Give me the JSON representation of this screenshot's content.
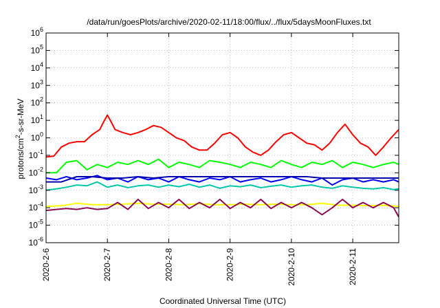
{
  "chart_data": {
    "type": "line",
    "title": "/data/run/goesPlots/archive/2020-02-11/18:00/flux/../flux/5daysMoonFluxes.txt",
    "xlabel": "Coordinated Universal Time (UTC)",
    "ylabel": {
      "prefix": "protons/cm",
      "sup": "2",
      "suffix": "-s-sr-MeV"
    },
    "y_scale": "log",
    "ylim": [
      1e-06,
      1000000.0
    ],
    "y_ticks": [
      {
        "value": 1e-06,
        "base": "10",
        "exp": "-6"
      },
      {
        "value": 1e-05,
        "base": "10",
        "exp": "-5"
      },
      {
        "value": 0.0001,
        "base": "10",
        "exp": "-4"
      },
      {
        "value": 0.001,
        "base": "10",
        "exp": "-3"
      },
      {
        "value": 0.01,
        "base": "10",
        "exp": "-2"
      },
      {
        "value": 0.1,
        "base": "10",
        "exp": "-1"
      },
      {
        "value": 1,
        "base": "10",
        "exp": "0"
      },
      {
        "value": 10,
        "base": "10",
        "exp": "1"
      },
      {
        "value": 100,
        "base": "10",
        "exp": "2"
      },
      {
        "value": 1000,
        "base": "10",
        "exp": "3"
      },
      {
        "value": 10000,
        "base": "10",
        "exp": "4"
      },
      {
        "value": 100000,
        "base": "10",
        "exp": "5"
      },
      {
        "value": 1000000,
        "base": "10",
        "exp": "6"
      }
    ],
    "xlim": [
      "2020-02-06",
      "2020-02-11 18:00"
    ],
    "x_ticks": [
      {
        "value": "2020-02-06",
        "label": "2020-2-6"
      },
      {
        "value": "2020-02-07",
        "label": "2020-2-7"
      },
      {
        "value": "2020-02-08",
        "label": "2020-2-8"
      },
      {
        "value": "2020-02-09",
        "label": "2020-2-9"
      },
      {
        "value": "2020-02-10",
        "label": "2020-2-10"
      },
      {
        "value": "2020-02-11",
        "label": "2020-2-11"
      }
    ],
    "grid": true,
    "grid_style": "dotted",
    "series": [
      {
        "color": "#ff0000",
        "x": [
          "2020-02-06 00:00",
          "2020-02-06 03:00",
          "2020-02-06 06:00",
          "2020-02-06 09:00",
          "2020-02-06 12:00",
          "2020-02-06 15:00",
          "2020-02-06 18:00",
          "2020-02-06 21:00",
          "2020-02-06 22:30",
          "2020-02-07 00:00",
          "2020-02-07 01:30",
          "2020-02-07 03:00",
          "2020-02-07 06:00",
          "2020-02-07 09:00",
          "2020-02-07 12:00",
          "2020-02-07 15:00",
          "2020-02-07 18:00",
          "2020-02-07 21:00",
          "2020-02-08 00:00",
          "2020-02-08 03:00",
          "2020-02-08 06:00",
          "2020-02-08 09:00",
          "2020-02-08 12:00",
          "2020-02-08 15:00",
          "2020-02-08 18:00",
          "2020-02-08 21:00",
          "2020-02-09 00:00",
          "2020-02-09 03:00",
          "2020-02-09 06:00",
          "2020-02-09 09:00",
          "2020-02-09 12:00",
          "2020-02-09 15:00",
          "2020-02-09 18:00",
          "2020-02-09 21:00",
          "2020-02-10 00:00",
          "2020-02-10 03:00",
          "2020-02-10 06:00",
          "2020-02-10 09:00",
          "2020-02-10 12:00",
          "2020-02-10 15:00",
          "2020-02-10 18:00",
          "2020-02-10 21:00",
          "2020-02-11 00:00",
          "2020-02-11 03:00",
          "2020-02-11 06:00",
          "2020-02-11 09:00",
          "2020-02-11 12:00",
          "2020-02-11 15:00",
          "2020-02-11 18:00"
        ],
        "values": [
          0.08,
          0.09,
          0.3,
          0.5,
          0.6,
          0.6,
          1.5,
          3,
          8,
          20,
          8,
          3,
          2,
          1.5,
          2,
          3,
          5,
          4,
          2,
          1,
          0.7,
          0.3,
          0.2,
          0.2,
          0.5,
          1.5,
          2,
          1,
          0.3,
          0.15,
          0.1,
          0.2,
          0.6,
          1.5,
          2,
          1,
          0.5,
          0.4,
          0.2,
          0.5,
          2,
          6,
          1.5,
          0.5,
          0.3,
          0.1,
          0.3,
          1,
          3
        ]
      },
      {
        "color": "#00ff00",
        "x": [
          "2020-02-06 00:00",
          "2020-02-06 04:00",
          "2020-02-06 08:00",
          "2020-02-06 12:00",
          "2020-02-06 16:00",
          "2020-02-06 20:00",
          "2020-02-07 00:00",
          "2020-02-07 04:00",
          "2020-02-07 08:00",
          "2020-02-07 12:00",
          "2020-02-07 16:00",
          "2020-02-07 20:00",
          "2020-02-08 00:00",
          "2020-02-08 04:00",
          "2020-02-08 08:00",
          "2020-02-08 12:00",
          "2020-02-08 16:00",
          "2020-02-08 20:00",
          "2020-02-09 00:00",
          "2020-02-09 04:00",
          "2020-02-09 08:00",
          "2020-02-09 12:00",
          "2020-02-09 16:00",
          "2020-02-09 20:00",
          "2020-02-10 00:00",
          "2020-02-10 04:00",
          "2020-02-10 08:00",
          "2020-02-10 12:00",
          "2020-02-10 16:00",
          "2020-02-10 20:00",
          "2020-02-11 00:00",
          "2020-02-11 04:00",
          "2020-02-11 08:00",
          "2020-02-11 12:00",
          "2020-02-11 16:00",
          "2020-02-11 18:00"
        ],
        "values": [
          0.01,
          0.01,
          0.04,
          0.05,
          0.015,
          0.03,
          0.02,
          0.04,
          0.03,
          0.05,
          0.03,
          0.06,
          0.02,
          0.04,
          0.03,
          0.02,
          0.05,
          0.04,
          0.03,
          0.02,
          0.04,
          0.03,
          0.02,
          0.05,
          0.03,
          0.02,
          0.04,
          0.03,
          0.05,
          0.02,
          0.04,
          0.03,
          0.02,
          0.03,
          0.04,
          0.03
        ]
      },
      {
        "color": "#00c8a8",
        "x": [
          "2020-02-06 00:00",
          "2020-02-06 04:00",
          "2020-02-06 08:00",
          "2020-02-06 12:00",
          "2020-02-06 16:00",
          "2020-02-06 20:00",
          "2020-02-07 00:00",
          "2020-02-07 04:00",
          "2020-02-07 08:00",
          "2020-02-07 12:00",
          "2020-02-07 16:00",
          "2020-02-07 20:00",
          "2020-02-08 00:00",
          "2020-02-08 04:00",
          "2020-02-08 08:00",
          "2020-02-08 12:00",
          "2020-02-08 16:00",
          "2020-02-08 20:00",
          "2020-02-09 00:00",
          "2020-02-09 04:00",
          "2020-02-09 08:00",
          "2020-02-09 12:00",
          "2020-02-09 16:00",
          "2020-02-09 20:00",
          "2020-02-10 00:00",
          "2020-02-10 04:00",
          "2020-02-10 08:00",
          "2020-02-10 12:00",
          "2020-02-10 16:00",
          "2020-02-10 20:00",
          "2020-02-11 00:00",
          "2020-02-11 04:00",
          "2020-02-11 08:00",
          "2020-02-11 12:00",
          "2020-02-11 16:00",
          "2020-02-11 18:00"
        ],
        "values": [
          0.001,
          0.0012,
          0.0015,
          0.002,
          0.0018,
          0.003,
          0.0015,
          0.002,
          0.0014,
          0.0018,
          0.002,
          0.0015,
          0.002,
          0.0016,
          0.0022,
          0.0015,
          0.002,
          0.0013,
          0.0018,
          0.0016,
          0.002,
          0.0014,
          0.0017,
          0.002,
          0.0015,
          0.0018,
          0.002,
          0.0015,
          0.0013,
          0.0018,
          0.0015,
          0.0013,
          0.0012,
          0.0014,
          0.0011,
          0.0012
        ]
      },
      {
        "color": "#0000ff",
        "x": [
          "2020-02-06 00:00",
          "2020-02-06 04:00",
          "2020-02-06 08:00",
          "2020-02-06 12:00",
          "2020-02-06 16:00",
          "2020-02-06 20:00",
          "2020-02-07 00:00",
          "2020-02-07 04:00",
          "2020-02-07 08:00",
          "2020-02-07 12:00",
          "2020-02-07 16:00",
          "2020-02-07 20:00",
          "2020-02-08 00:00",
          "2020-02-08 04:00",
          "2020-02-08 08:00",
          "2020-02-08 12:00",
          "2020-02-08 16:00",
          "2020-02-08 20:00",
          "2020-02-09 00:00",
          "2020-02-09 04:00",
          "2020-02-09 08:00",
          "2020-02-09 12:00",
          "2020-02-09 16:00",
          "2020-02-09 20:00",
          "2020-02-10 00:00",
          "2020-02-10 04:00",
          "2020-02-10 08:00",
          "2020-02-10 12:00",
          "2020-02-10 16:00",
          "2020-02-10 20:00",
          "2020-02-11 00:00",
          "2020-02-11 04:00",
          "2020-02-11 08:00",
          "2020-02-11 12:00",
          "2020-02-11 16:00",
          "2020-02-11 18:00"
        ],
        "values": [
          0.005,
          0.004,
          0.006,
          0.004,
          0.005,
          0.007,
          0.004,
          0.005,
          0.003,
          0.006,
          0.004,
          0.005,
          0.003,
          0.006,
          0.004,
          0.003,
          0.005,
          0.004,
          0.006,
          0.003,
          0.004,
          0.005,
          0.003,
          0.004,
          0.006,
          0.004,
          0.003,
          0.005,
          0.002,
          0.004,
          0.005,
          0.003,
          0.004,
          0.003,
          0.004,
          0.003
        ]
      },
      {
        "color": "#0000b0",
        "x": [
          "2020-02-06 00:00",
          "2020-02-06 06:00",
          "2020-02-06 12:00",
          "2020-02-06 18:00",
          "2020-02-07 00:00",
          "2020-02-07 06:00",
          "2020-02-07 12:00",
          "2020-02-07 18:00",
          "2020-02-08 00:00",
          "2020-02-08 06:00",
          "2020-02-08 12:00",
          "2020-02-08 18:00",
          "2020-02-09 00:00",
          "2020-02-09 06:00",
          "2020-02-09 12:00",
          "2020-02-09 18:00",
          "2020-02-10 00:00",
          "2020-02-10 06:00",
          "2020-02-10 12:00",
          "2020-02-10 18:00",
          "2020-02-11 00:00",
          "2020-02-11 06:00",
          "2020-02-11 12:00",
          "2020-02-11 18:00"
        ],
        "values": [
          0.003,
          0.003,
          0.006,
          0.006,
          0.005,
          0.005,
          0.006,
          0.005,
          0.006,
          0.006,
          0.006,
          0.006,
          0.006,
          0.006,
          0.006,
          0.006,
          0.006,
          0.006,
          0.005,
          0.005,
          0.005,
          0.005,
          0.005,
          0.005
        ]
      },
      {
        "color": "#ffff00",
        "x": [
          "2020-02-06 00:00",
          "2020-02-06 06:00",
          "2020-02-06 12:00",
          "2020-02-06 18:00",
          "2020-02-07 00:00",
          "2020-02-07 06:00",
          "2020-02-07 12:00",
          "2020-02-07 18:00",
          "2020-02-08 00:00",
          "2020-02-08 06:00",
          "2020-02-08 12:00",
          "2020-02-08 18:00",
          "2020-02-09 00:00",
          "2020-02-09 06:00",
          "2020-02-09 12:00",
          "2020-02-09 18:00",
          "2020-02-10 00:00",
          "2020-02-10 06:00",
          "2020-02-10 12:00",
          "2020-02-10 18:00",
          "2020-02-11 00:00",
          "2020-02-11 06:00",
          "2020-02-11 12:00",
          "2020-02-11 18:00"
        ],
        "values": [
          0.00012,
          0.00013,
          0.00018,
          0.00015,
          0.00015,
          0.00016,
          0.00018,
          0.00016,
          0.00016,
          0.00015,
          0.00017,
          0.00015,
          0.00015,
          0.00016,
          0.00015,
          0.00016,
          0.00015,
          0.00015,
          0.00018,
          0.00014,
          0.00014,
          0.00013,
          0.00014,
          0.00012
        ]
      },
      {
        "color": "#8b0a50",
        "x": [
          "2020-02-06 00:00",
          "2020-02-06 04:00",
          "2020-02-06 08:00",
          "2020-02-06 12:00",
          "2020-02-06 16:00",
          "2020-02-06 20:00",
          "2020-02-07 00:00",
          "2020-02-07 04:00",
          "2020-02-07 08:00",
          "2020-02-07 12:00",
          "2020-02-07 16:00",
          "2020-02-07 20:00",
          "2020-02-08 00:00",
          "2020-02-08 04:00",
          "2020-02-08 08:00",
          "2020-02-08 12:00",
          "2020-02-08 16:00",
          "2020-02-08 20:00",
          "2020-02-09 00:00",
          "2020-02-09 04:00",
          "2020-02-09 08:00",
          "2020-02-09 12:00",
          "2020-02-09 16:00",
          "2020-02-09 20:00",
          "2020-02-10 00:00",
          "2020-02-10 04:00",
          "2020-02-10 08:00",
          "2020-02-10 12:00",
          "2020-02-10 16:00",
          "2020-02-10 20:00",
          "2020-02-11 00:00",
          "2020-02-11 04:00",
          "2020-02-11 08:00",
          "2020-02-11 12:00",
          "2020-02-11 16:00",
          "2020-02-11 18:00"
        ],
        "values": [
          7e-05,
          8e-05,
          9e-05,
          8e-05,
          0.0001,
          8e-05,
          9e-05,
          0.0002,
          8e-05,
          0.0003,
          9e-05,
          0.0002,
          0.0001,
          0.0003,
          9e-05,
          0.0002,
          0.0001,
          0.0003,
          9e-05,
          0.0002,
          0.0001,
          0.0003,
          9e-05,
          0.0002,
          0.0001,
          0.0002,
          0.0001,
          4e-05,
          0.0001,
          0.0003,
          0.0001,
          0.0002,
          0.0001,
          0.0002,
          0.0001,
          3e-05
        ]
      }
    ]
  }
}
